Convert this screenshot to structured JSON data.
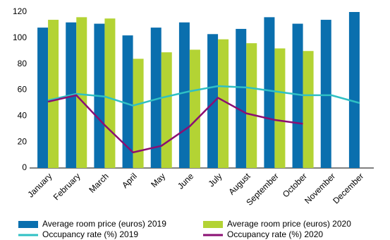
{
  "chart_data": {
    "type": "bar",
    "categories": [
      "January",
      "February",
      "March",
      "April",
      "May",
      "June",
      "July",
      "August",
      "September",
      "October",
      "November",
      "December"
    ],
    "series": [
      {
        "name": "Average room price (euros) 2019",
        "type": "bar",
        "color": "#0a6fae",
        "values": [
          108,
          112,
          111,
          102,
          108,
          112,
          103,
          107,
          116,
          111,
          114,
          120
        ]
      },
      {
        "name": "Average room price (euros) 2020",
        "type": "bar",
        "color": "#b3d334",
        "values": [
          114,
          116,
          115,
          84,
          89,
          91,
          99,
          96,
          92,
          90,
          null,
          null
        ]
      },
      {
        "name": "Occupancy rate (%) 2019",
        "type": "line",
        "color": "#2fc0c4",
        "values": [
          52,
          57,
          55,
          48,
          54,
          59,
          63,
          62,
          59,
          56,
          56,
          50
        ]
      },
      {
        "name": "Occupancy rate (%) 2020",
        "type": "line",
        "color": "#8a0f73",
        "values": [
          51,
          56,
          33,
          12,
          17,
          32,
          54,
          42,
          37,
          34,
          null,
          null
        ]
      }
    ],
    "ylim": [
      0,
      120
    ],
    "yticks": [
      0,
      20,
      40,
      60,
      80,
      100,
      120
    ]
  }
}
